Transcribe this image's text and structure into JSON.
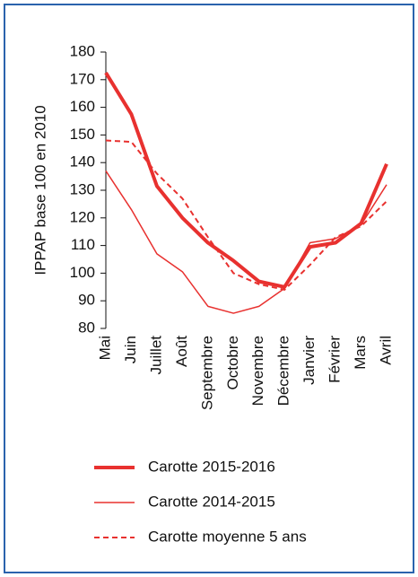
{
  "chart_data": {
    "type": "line",
    "y_label": "IPPAP base 100 en 2010",
    "categories": [
      "Mai",
      "Juin",
      "Juillet",
      "Août",
      "Septembre",
      "Octobre",
      "Novembre",
      "Décembre",
      "Janvier",
      "Février",
      "Mars",
      "Avril"
    ],
    "series": [
      {
        "name": "Carotte 2015-2016",
        "color": "#e8312f",
        "width": 4,
        "dash": false,
        "values": [
          172.5,
          157.5,
          131.5,
          120,
          111,
          104.5,
          97,
          95,
          109.5,
          111,
          118,
          139.5
        ]
      },
      {
        "name": "Carotte 2014-2015",
        "color": "#e8312f",
        "width": 1.5,
        "dash": false,
        "values": [
          137,
          123,
          107,
          100.5,
          88,
          85.5,
          88,
          94.5,
          111,
          112.5,
          117.5,
          132
        ]
      },
      {
        "name": "Carotte moyenne 5 ans",
        "color": "#e8312f",
        "width": 2,
        "dash": true,
        "values": [
          148,
          147.5,
          136,
          127,
          113,
          100,
          96,
          94,
          103,
          113,
          117,
          126
        ]
      }
    ],
    "ylim": [
      80,
      180
    ],
    "yticks": [
      80,
      90,
      100,
      110,
      120,
      130,
      140,
      150,
      160,
      170,
      180
    ]
  }
}
